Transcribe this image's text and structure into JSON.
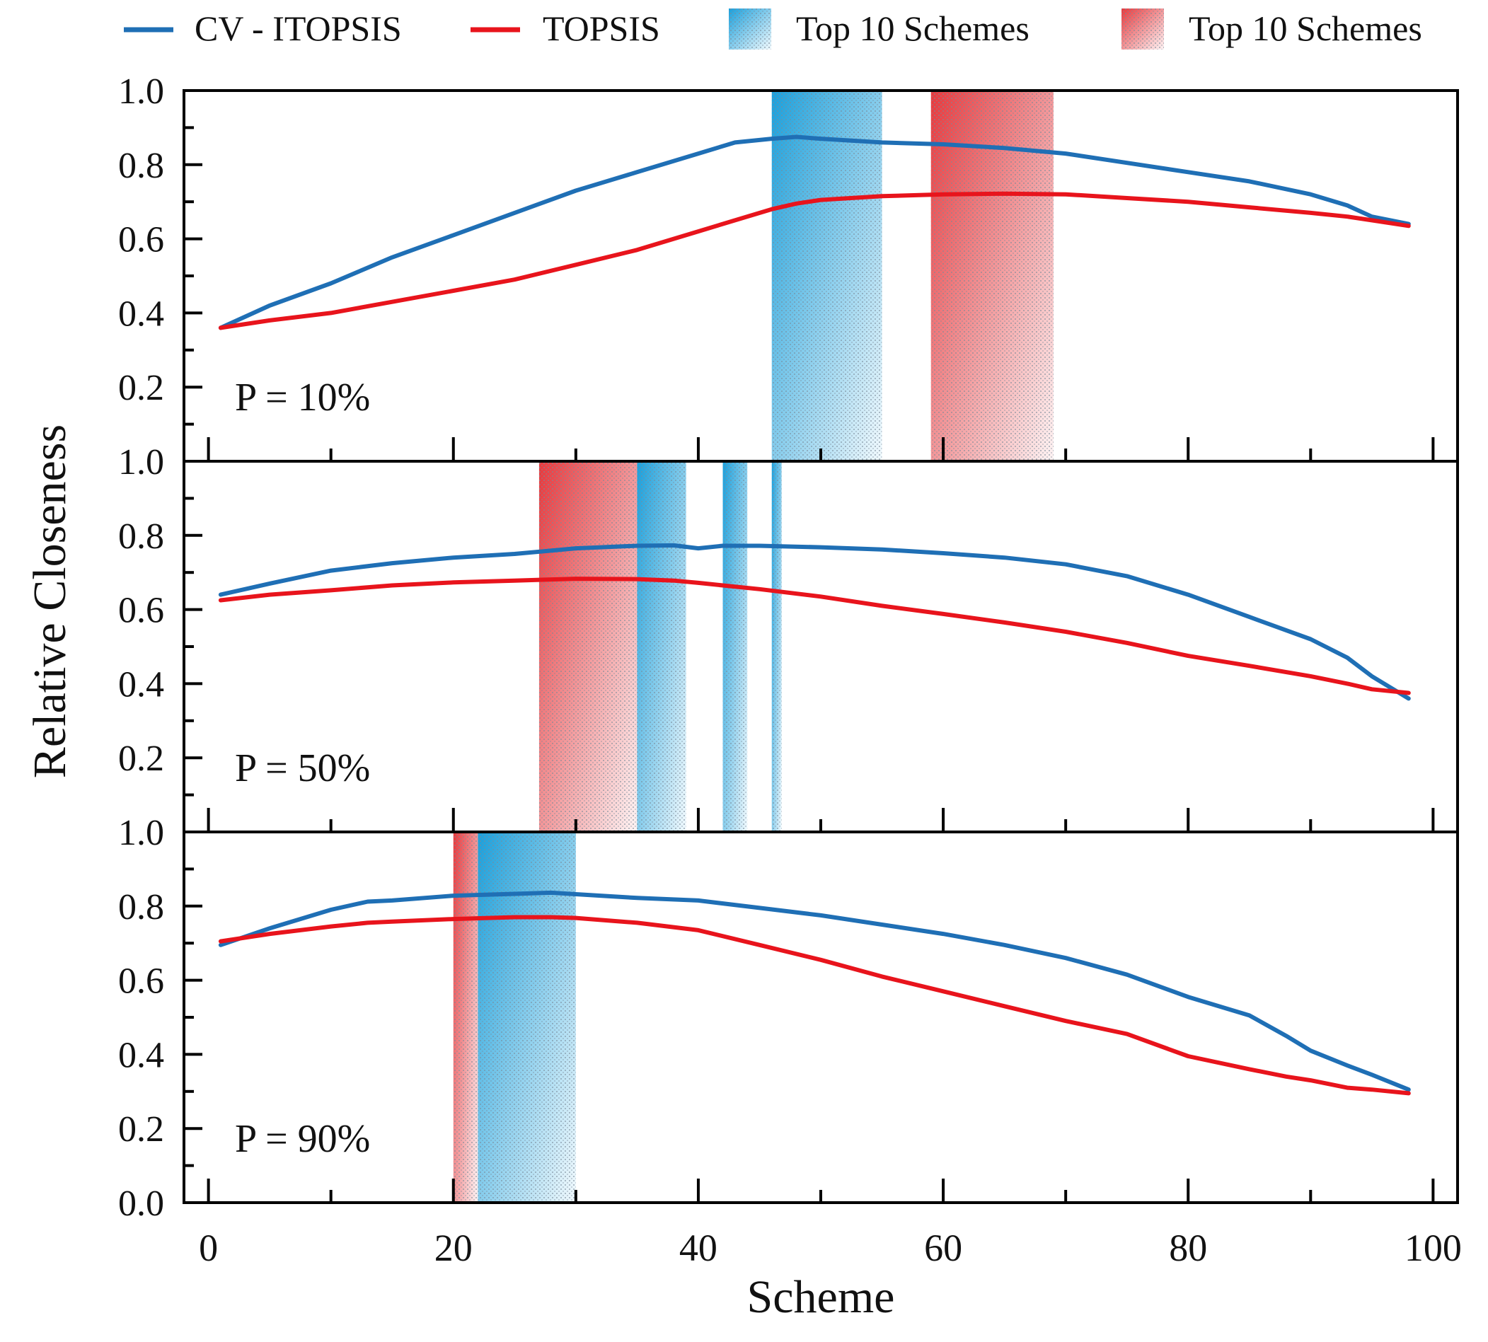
{
  "chart_data": {
    "type": "line",
    "title": "",
    "xlabel": "Scheme",
    "ylabel": "Relative Closeness",
    "xlim": [
      -2,
      102
    ],
    "x_ticks": [
      "0",
      "20",
      "40",
      "60",
      "80",
      "100"
    ],
    "x_tick_values": [
      0,
      20,
      40,
      60,
      80,
      100
    ],
    "legend_position": "top",
    "legend": [
      {
        "label": "CV - ITOPSIS",
        "kind": "line",
        "color": "#1f6fb5"
      },
      {
        "label": "TOPSIS",
        "kind": "line",
        "color": "#e8141c"
      },
      {
        "label": "Top 10 Schemes",
        "kind": "band",
        "color": "#1aa0dc"
      },
      {
        "label": "Top 10 Schemes",
        "kind": "band",
        "color": "#e8393d"
      }
    ],
    "colors": {
      "cv": "#1f6fb5",
      "topsis": "#e8141c",
      "band_cv": "#1aa0dc",
      "band_topsis": "#e8393d"
    },
    "panels": [
      {
        "name": "p10",
        "annotation": "P = 10%",
        "ylim": [
          0,
          1
        ],
        "y_ticks": [
          "0.2",
          "0.4",
          "0.6",
          "0.8",
          "1.0"
        ],
        "y_tick_values": [
          0.2,
          0.4,
          0.6,
          0.8,
          1.0
        ],
        "series": [
          {
            "name": "CV - ITOPSIS",
            "key": "cv",
            "x": [
              1,
              5,
              10,
              15,
              20,
              25,
              30,
              35,
              40,
              43,
              46,
              48,
              50,
              55,
              60,
              65,
              70,
              75,
              80,
              85,
              90,
              93,
              95,
              98
            ],
            "y": [
              0.36,
              0.42,
              0.48,
              0.55,
              0.61,
              0.67,
              0.73,
              0.78,
              0.83,
              0.86,
              0.87,
              0.875,
              0.87,
              0.86,
              0.855,
              0.845,
              0.83,
              0.805,
              0.78,
              0.755,
              0.72,
              0.69,
              0.66,
              0.64
            ]
          },
          {
            "name": "TOPSIS",
            "key": "topsis",
            "x": [
              1,
              5,
              10,
              15,
              20,
              25,
              30,
              35,
              40,
              43,
              46,
              48,
              50,
              55,
              60,
              65,
              70,
              75,
              80,
              85,
              90,
              93,
              95,
              98
            ],
            "y": [
              0.36,
              0.38,
              0.4,
              0.43,
              0.46,
              0.49,
              0.53,
              0.57,
              0.62,
              0.65,
              0.68,
              0.695,
              0.705,
              0.715,
              0.72,
              0.722,
              0.72,
              0.71,
              0.7,
              0.685,
              0.67,
              0.66,
              0.65,
              0.635
            ]
          }
        ],
        "bands": [
          {
            "key": "band_cv",
            "x0": 46,
            "x1": 55
          },
          {
            "key": "band_topsis",
            "x0": 59,
            "x1": 69
          }
        ]
      },
      {
        "name": "p50",
        "annotation": "P = 50%",
        "ylim": [
          0,
          1
        ],
        "y_ticks": [
          "0.2",
          "0.4",
          "0.6",
          "0.8",
          "1.0"
        ],
        "y_tick_values": [
          0.2,
          0.4,
          0.6,
          0.8,
          1.0
        ],
        "series": [
          {
            "name": "CV - ITOPSIS",
            "key": "cv",
            "x": [
              1,
              5,
              10,
              15,
              20,
              25,
              30,
              35,
              38,
              40,
              42,
              45,
              50,
              55,
              60,
              65,
              70,
              75,
              80,
              85,
              90,
              93,
              95,
              98
            ],
            "y": [
              0.64,
              0.67,
              0.705,
              0.725,
              0.74,
              0.75,
              0.765,
              0.772,
              0.773,
              0.765,
              0.772,
              0.772,
              0.768,
              0.762,
              0.752,
              0.74,
              0.722,
              0.69,
              0.64,
              0.58,
              0.52,
              0.47,
              0.42,
              0.36
            ]
          },
          {
            "name": "TOPSIS",
            "key": "topsis",
            "x": [
              1,
              5,
              10,
              15,
              20,
              25,
              30,
              35,
              38,
              40,
              42,
              45,
              50,
              55,
              60,
              65,
              70,
              75,
              80,
              85,
              90,
              93,
              95,
              98
            ],
            "y": [
              0.625,
              0.64,
              0.652,
              0.665,
              0.673,
              0.678,
              0.683,
              0.682,
              0.678,
              0.672,
              0.665,
              0.655,
              0.635,
              0.61,
              0.588,
              0.565,
              0.54,
              0.51,
              0.475,
              0.448,
              0.42,
              0.4,
              0.385,
              0.375
            ]
          }
        ],
        "bands": [
          {
            "key": "band_topsis",
            "x0": 27,
            "x1": 35
          },
          {
            "key": "band_cv",
            "x0": 35,
            "x1": 39
          },
          {
            "key": "band_cv",
            "x0": 42,
            "x1": 44
          },
          {
            "key": "band_cv",
            "x0": 46,
            "x1": 46.8
          }
        ]
      },
      {
        "name": "p90",
        "annotation": "P = 90%",
        "ylim": [
          0,
          1
        ],
        "y_ticks": [
          "0.0",
          "0.2",
          "0.4",
          "0.6",
          "0.8",
          "1.0"
        ],
        "y_tick_values": [
          0.0,
          0.2,
          0.4,
          0.6,
          0.8,
          1.0
        ],
        "series": [
          {
            "name": "CV - ITOPSIS",
            "key": "cv",
            "x": [
              1,
              5,
              10,
              13,
              15,
              20,
              25,
              28,
              30,
              35,
              40,
              45,
              50,
              55,
              60,
              65,
              70,
              75,
              80,
              85,
              88,
              90,
              93,
              95,
              98
            ],
            "y": [
              0.695,
              0.74,
              0.79,
              0.812,
              0.815,
              0.828,
              0.833,
              0.836,
              0.832,
              0.822,
              0.815,
              0.795,
              0.775,
              0.75,
              0.725,
              0.695,
              0.66,
              0.615,
              0.555,
              0.505,
              0.45,
              0.41,
              0.37,
              0.345,
              0.305
            ]
          },
          {
            "name": "TOPSIS",
            "key": "topsis",
            "x": [
              1,
              5,
              10,
              13,
              15,
              20,
              25,
              28,
              30,
              35,
              40,
              45,
              50,
              55,
              60,
              65,
              70,
              75,
              80,
              85,
              88,
              90,
              93,
              95,
              98
            ],
            "y": [
              0.705,
              0.725,
              0.745,
              0.755,
              0.758,
              0.765,
              0.77,
              0.77,
              0.768,
              0.755,
              0.735,
              0.695,
              0.655,
              0.61,
              0.57,
              0.53,
              0.49,
              0.455,
              0.395,
              0.36,
              0.34,
              0.33,
              0.31,
              0.305,
              0.295
            ]
          }
        ],
        "bands": [
          {
            "key": "band_topsis",
            "x0": 20,
            "x1": 22
          },
          {
            "key": "band_cv",
            "x0": 22,
            "x1": 30
          }
        ]
      }
    ]
  }
}
